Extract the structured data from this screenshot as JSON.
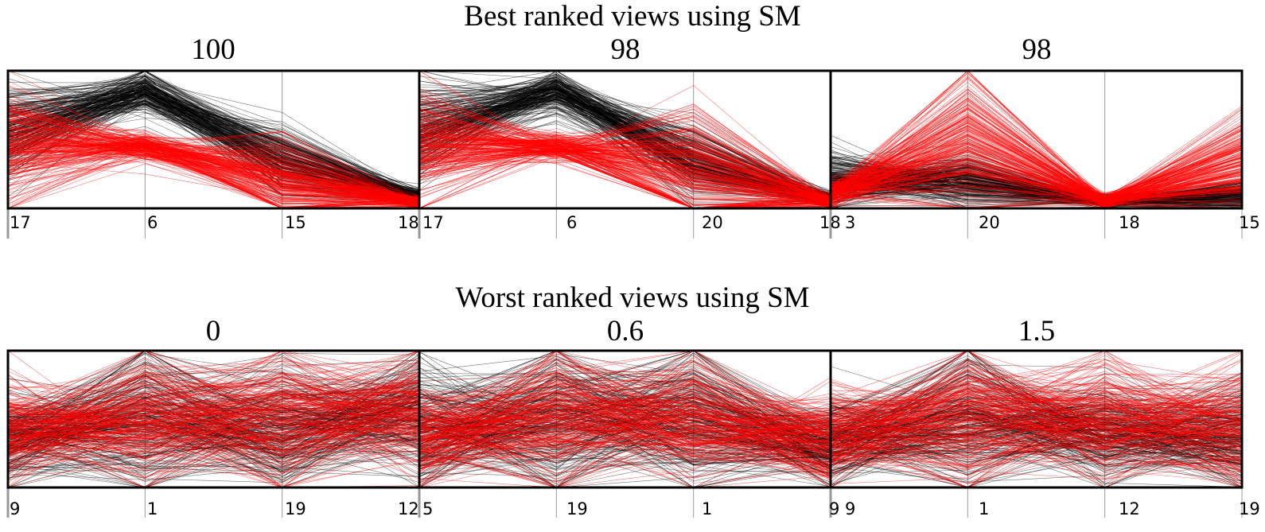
{
  "top_title": "Best ranked views using SM",
  "bottom_title": "Worst ranked views using SM",
  "colors": {
    "class_a": "#000000",
    "class_b": "#ff0000",
    "axis": "#999999",
    "frame": "#000000"
  },
  "chart_data": [
    {
      "type": "parallel-coordinates",
      "group": "best",
      "title": "100",
      "axes": [
        "17",
        "6",
        "15",
        "18"
      ],
      "series": [
        {
          "color": "#000000",
          "centers": [
            0.55,
            0.85,
            0.35,
            0.08
          ],
          "spread": [
            0.35,
            0.15,
            0.25,
            0.06
          ]
        },
        {
          "color": "#ff0000",
          "centers": [
            0.45,
            0.45,
            0.2,
            0.04
          ],
          "spread": [
            0.4,
            0.1,
            0.3,
            0.05
          ]
        }
      ]
    },
    {
      "type": "parallel-coordinates",
      "group": "best",
      "title": "98",
      "axes": [
        "17",
        "6",
        "20",
        "18"
      ],
      "series": [
        {
          "color": "#000000",
          "centers": [
            0.55,
            0.85,
            0.35,
            0.06
          ],
          "spread": [
            0.35,
            0.15,
            0.25,
            0.05
          ]
        },
        {
          "color": "#ff0000",
          "centers": [
            0.45,
            0.45,
            0.25,
            0.05
          ],
          "spread": [
            0.4,
            0.1,
            0.45,
            0.05
          ]
        }
      ]
    },
    {
      "type": "parallel-coordinates",
      "group": "best",
      "title": "98",
      "axes": [
        "3",
        "20",
        "18",
        "15"
      ],
      "series": [
        {
          "color": "#000000",
          "centers": [
            0.2,
            0.2,
            0.05,
            0.1
          ],
          "spread": [
            0.2,
            0.2,
            0.04,
            0.1
          ]
        },
        {
          "color": "#ff0000",
          "centers": [
            0.1,
            0.5,
            0.05,
            0.35
          ],
          "spread": [
            0.1,
            0.5,
            0.05,
            0.35
          ]
        }
      ]
    },
    {
      "type": "parallel-coordinates",
      "group": "worst",
      "title": "0",
      "axes": [
        "9",
        "1",
        "19",
        "12"
      ],
      "series": [
        {
          "color": "#000000",
          "centers": [
            0.35,
            0.5,
            0.45,
            0.55
          ],
          "spread": [
            0.3,
            0.5,
            0.45,
            0.4
          ]
        },
        {
          "color": "#ff0000",
          "centers": [
            0.4,
            0.5,
            0.5,
            0.55
          ],
          "spread": [
            0.35,
            0.5,
            0.5,
            0.4
          ]
        }
      ]
    },
    {
      "type": "parallel-coordinates",
      "group": "worst",
      "title": "0.6",
      "axes": [
        "5",
        "19",
        "1",
        "9"
      ],
      "series": [
        {
          "color": "#000000",
          "centers": [
            0.45,
            0.5,
            0.5,
            0.3
          ],
          "spread": [
            0.45,
            0.5,
            0.5,
            0.25
          ]
        },
        {
          "color": "#ff0000",
          "centers": [
            0.35,
            0.5,
            0.5,
            0.35
          ],
          "spread": [
            0.35,
            0.5,
            0.5,
            0.3
          ]
        }
      ]
    },
    {
      "type": "parallel-coordinates",
      "group": "worst",
      "title": "1.5",
      "axes": [
        "9",
        "1",
        "12",
        "19"
      ],
      "series": [
        {
          "color": "#000000",
          "centers": [
            0.35,
            0.5,
            0.4,
            0.35
          ],
          "spread": [
            0.3,
            0.5,
            0.35,
            0.35
          ]
        },
        {
          "color": "#ff0000",
          "centers": [
            0.4,
            0.5,
            0.5,
            0.45
          ],
          "spread": [
            0.35,
            0.5,
            0.45,
            0.45
          ]
        }
      ]
    }
  ]
}
